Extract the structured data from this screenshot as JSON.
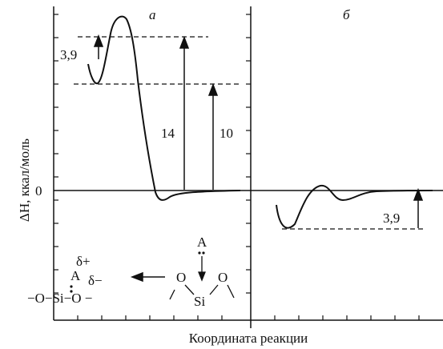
{
  "diagram": {
    "panel_a_label": "а",
    "panel_b_label": "б",
    "y_axis_label": "ΔH, ккал/моль",
    "x_axis_label": "Координата реакции",
    "zero_label": "0",
    "energies": {
      "barrier_small_a": "3,9",
      "barrier_14": "14",
      "barrier_10": "10",
      "barrier_b": "3,9"
    },
    "scheme": {
      "left_A": "A",
      "left_delta_plus": "δ+",
      "left_delta_minus": "δ−",
      "left_chain": "−O−Si−O −",
      "right_A": "A",
      "right_O1": "O",
      "right_O2": "O",
      "right_Si": "Si"
    },
    "colors": {
      "line": "#111111",
      "background": "#ffffff"
    }
  }
}
